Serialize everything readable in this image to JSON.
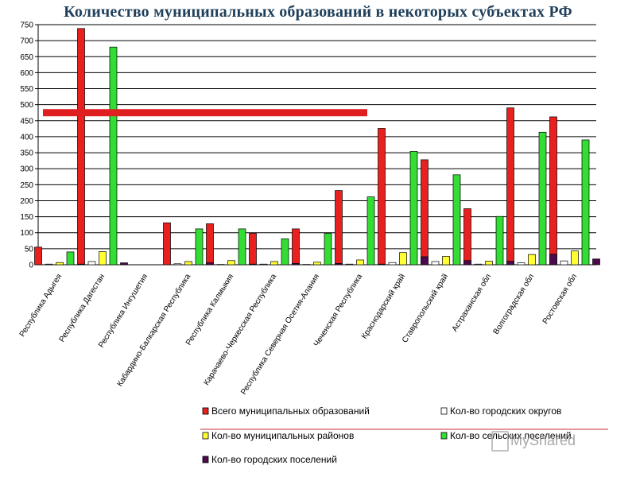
{
  "title": "Количество муниципальных образований в некоторых субъектах РФ",
  "watermark": "MyShared",
  "chart_data": {
    "type": "bar",
    "title": "Количество муниципальных образований в некоторых субъектах РФ",
    "ylim": [
      0,
      750
    ],
    "yticks": [
      0,
      50,
      100,
      150,
      200,
      250,
      300,
      350,
      400,
      450,
      500,
      550,
      600,
      650,
      700,
      750
    ],
    "grid": true,
    "legend_position": "bottom",
    "reference_line": {
      "value": 475,
      "color": "#e02020"
    },
    "categories": [
      "Республика Адыгея",
      "Республика Дагестан",
      "Республика Ингушетия",
      "Кабардино-Балкарская Республика",
      "Республика Калмыкия",
      "Карачаево-Черкесская Республика",
      "Республика Северная Осетия-Алания",
      "Чеченская Республика",
      "Краснодарский край",
      "Ставропольский край",
      "Астраханская обл",
      "Волгоградская обл",
      "Ростовская обл"
    ],
    "series": [
      {
        "name": "Всего муниципальных образований",
        "color": "#e82020",
        "values": [
          55,
          738,
          0,
          131,
          128,
          98,
          112,
          232,
          426,
          328,
          175,
          490,
          462
        ]
      },
      {
        "name": "Кол-во городских округов",
        "color": "#ffffff",
        "values": [
          2,
          10,
          0,
          3,
          1,
          2,
          1,
          2,
          7,
          10,
          2,
          6,
          12
        ]
      },
      {
        "name": "Кол-во муниципальных районов",
        "color": "#ffff33",
        "values": [
          7,
          41,
          0,
          10,
          13,
          10,
          8,
          15,
          38,
          26,
          11,
          32,
          43
        ]
      },
      {
        "name": "Кол-во сельских поселений",
        "color": "#33dd33",
        "values": [
          40,
          680,
          0,
          112,
          112,
          81,
          98,
          212,
          354,
          281,
          151,
          414,
          390
        ]
      },
      {
        "name": "Кол-во городских поселений",
        "color": "#4b0a4b",
        "values": [
          2,
          6,
          0,
          6,
          2,
          4,
          4,
          2,
          25,
          13,
          11,
          33,
          18
        ]
      }
    ]
  }
}
